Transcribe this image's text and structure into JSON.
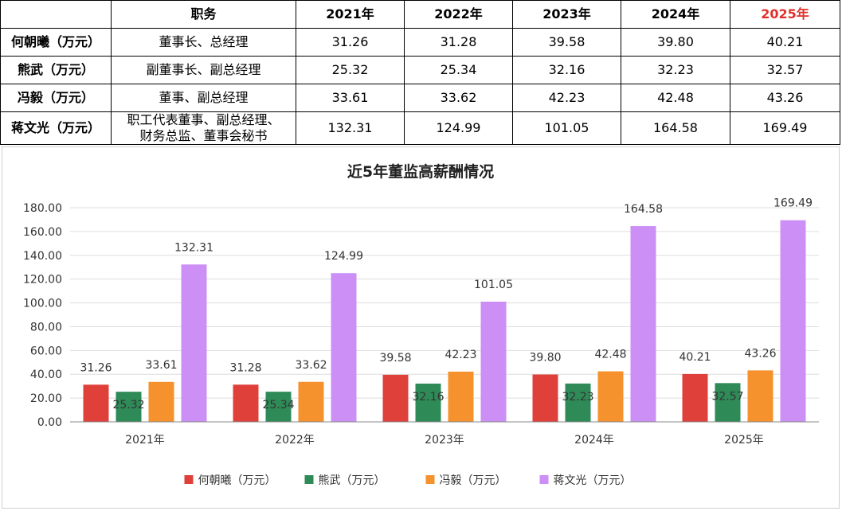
{
  "table": {
    "corner": "",
    "role_header": "职务",
    "years": [
      "2021年",
      "2022年",
      "2023年",
      "2024年",
      "2025年"
    ],
    "highlight_color": "#e0302b",
    "rows": [
      {
        "name": "何朝曦（万元）",
        "role_lines": [
          "董事长、总经理"
        ],
        "values": [
          "31.26",
          "31.28",
          "39.58",
          "39.80",
          "40.21"
        ]
      },
      {
        "name": "熊武（万元）",
        "role_lines": [
          "副董事长、副总经理"
        ],
        "values": [
          "25.32",
          "25.34",
          "32.16",
          "32.23",
          "32.57"
        ]
      },
      {
        "name": "冯毅（万元）",
        "role_lines": [
          "董事、副总经理"
        ],
        "values": [
          "33.61",
          "33.62",
          "42.23",
          "42.48",
          "43.26"
        ]
      },
      {
        "name": "蒋文光（万元）",
        "role_lines": [
          "职工代表董事、副总经理、",
          "财务总监、董事会秘书"
        ],
        "values": [
          "132.31",
          "124.99",
          "101.05",
          "164.58",
          "169.49"
        ]
      }
    ]
  },
  "chart_data": {
    "type": "bar",
    "title": "近5年董监高薪酬情况",
    "categories": [
      "2021年",
      "2022年",
      "2023年",
      "2024年",
      "2025年"
    ],
    "series": [
      {
        "name": "何朝曦（万元）",
        "color": "#e0403a",
        "values": [
          31.26,
          31.28,
          39.58,
          39.8,
          40.21
        ],
        "labels": [
          "31.26",
          "31.28",
          "39.58",
          "39.80",
          "40.21"
        ]
      },
      {
        "name": "熊武（万元）",
        "color": "#2e8b57",
        "values": [
          25.32,
          25.34,
          32.16,
          32.23,
          32.57
        ],
        "labels": [
          "25.32",
          "25.34",
          "32.16",
          "32.23",
          "32.57"
        ]
      },
      {
        "name": "冯毅（万元）",
        "color": "#f5922e",
        "values": [
          33.61,
          33.62,
          42.23,
          42.48,
          43.26
        ],
        "labels": [
          "33.61",
          "33.62",
          "42.23",
          "42.48",
          "43.26"
        ]
      },
      {
        "name": "蒋文光（万元）",
        "color": "#cc8ff5",
        "values": [
          132.31,
          124.99,
          101.05,
          164.58,
          169.49
        ],
        "labels": [
          "132.31",
          "124.99",
          "101.05",
          "164.58",
          "169.49"
        ]
      }
    ],
    "ylim": [
      0,
      180
    ],
    "yticks": [
      "0.00",
      "20.00",
      "40.00",
      "60.00",
      "80.00",
      "100.00",
      "120.00",
      "140.00",
      "160.00",
      "180.00"
    ],
    "xlabel": "",
    "ylabel": "",
    "grid": true,
    "legend_position": "bottom-center"
  }
}
